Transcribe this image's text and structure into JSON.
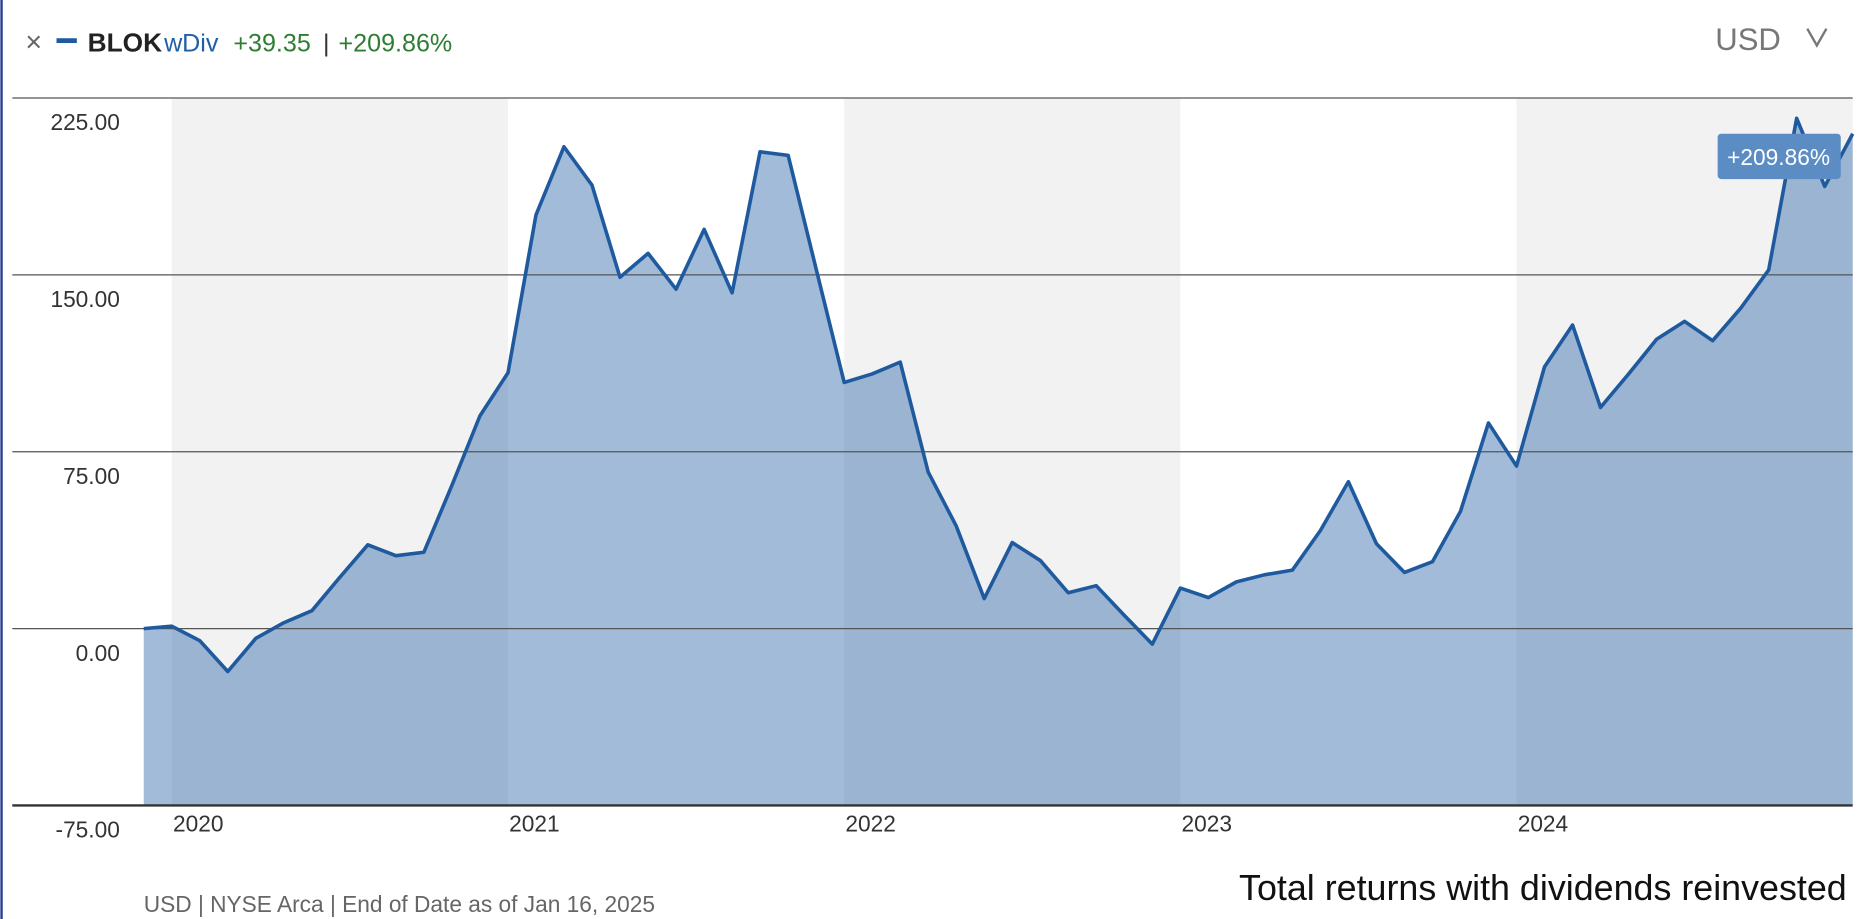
{
  "header": {
    "close": "×",
    "ticker": "BLOK",
    "mode": "wDiv",
    "change": "+39.35",
    "separator": "|",
    "change_pct": "+209.86%",
    "currency": "USD"
  },
  "chart_data": {
    "type": "area",
    "categories": [
      null,
      "2020",
      null,
      null,
      null,
      null,
      null,
      null,
      null,
      null,
      null,
      null,
      null,
      "2021",
      null,
      null,
      null,
      null,
      null,
      null,
      null,
      null,
      null,
      null,
      null,
      "2022",
      null,
      null,
      null,
      null,
      null,
      null,
      null,
      null,
      null,
      null,
      null,
      "2023",
      null,
      null,
      null,
      null,
      null,
      null,
      null,
      null,
      null,
      null,
      null,
      "2024",
      null,
      null,
      null,
      null,
      null,
      null,
      null,
      null,
      null,
      null,
      null,
      null
    ],
    "series": [
      {
        "name": "BLOK",
        "color": "#1f5a9e",
        "values": [
          0,
          1.0,
          -5.1,
          -18.2,
          -4.1,
          2.5,
          7.6,
          21.8,
          35.5,
          30.9,
          32.4,
          60.8,
          90.2,
          108.5,
          175.4,
          204.3,
          188.0,
          149.0,
          159.1,
          143.9,
          169.3,
          142.4,
          202.2,
          200.7,
          152.6,
          104.4,
          108.0,
          113.0,
          66.4,
          43.6,
          12.7,
          36.5,
          28.9,
          15.2,
          18.2,
          5.6,
          -6.6,
          17.2,
          13.2,
          19.8,
          22.8,
          24.8,
          41.6,
          62.3,
          36.0,
          23.8,
          28.4,
          49.7,
          87.2,
          68.9,
          111.0,
          128.7,
          93.8,
          108.0,
          122.7,
          130.3,
          122.1,
          135.8,
          152.1,
          216.4,
          187.5,
          209.86
        ]
      }
    ],
    "ylim": [
      -75,
      225
    ],
    "yticks": [
      {
        "value": -75,
        "label": "-75.00"
      },
      {
        "value": 0,
        "label": "0.00"
      },
      {
        "value": 75,
        "label": "75.00"
      },
      {
        "value": 150,
        "label": "150.00"
      },
      {
        "value": 225,
        "label": "225.00"
      }
    ],
    "grid": true,
    "annotation": "+209.86%",
    "footer": "USD | NYSE Arca | End of Date as of Jan 16, 2025",
    "caption": "Total returns with dividends reinvested"
  }
}
